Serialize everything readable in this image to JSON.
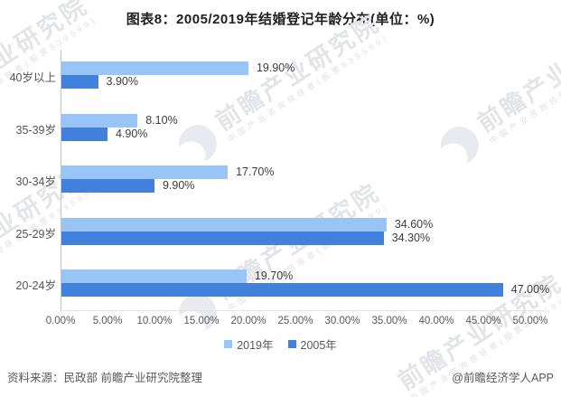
{
  "title": "图表8：2005/2019年结婚登记年龄分布(单位：%)",
  "chart_data": {
    "type": "bar",
    "orientation": "horizontal",
    "title": "图表8：2005/2019年结婚登记年龄分布(单位：%)",
    "unit": "%",
    "categories": [
      "40岁以上",
      "35-39岁",
      "30-34岁",
      "25-29岁",
      "20-24岁"
    ],
    "series": [
      {
        "name": "2019年",
        "color": "#98c5f5",
        "values": [
          19.9,
          8.1,
          17.7,
          34.6,
          19.7
        ],
        "labels": [
          "19.90%",
          "8.10%",
          "17.70%",
          "34.60%",
          "19.70%"
        ]
      },
      {
        "name": "2005年",
        "color": "#4181dc",
        "values": [
          3.9,
          4.9,
          9.9,
          34.3,
          47.0
        ],
        "labels": [
          "3.90%",
          "4.90%",
          "9.90%",
          "34.30%",
          "47.00%"
        ]
      }
    ],
    "x_axis": {
      "min": 0,
      "max": 50,
      "tick_step": 5,
      "ticks": [
        "0.00%",
        "5.00%",
        "10.00%",
        "15.00%",
        "20.00%",
        "25.00%",
        "30.00%",
        "35.00%",
        "40.00%",
        "45.00%",
        "50.00%"
      ]
    },
    "legend": [
      "2019年",
      "2005年"
    ],
    "legend_position": "bottom",
    "grid": false
  },
  "footer": {
    "source": "资料来源：民政部 前瞻产业研究院整理",
    "credit": "@前瞻经济学人APP"
  },
  "watermark": {
    "main": "前瞻产业研究院",
    "sub": "中国产业咨询领导者(股票839599)"
  },
  "colors": {
    "series_2019": "#98c5f5",
    "series_2005": "#4181dc",
    "axis_line": "#c4c4c8",
    "tick_text": "#595959",
    "category_text": "#555555",
    "value_text": "#3d3d3d",
    "title_text": "#1f1f1f",
    "footer_text": "#595959",
    "watermark_text": "#e3e4e9"
  }
}
